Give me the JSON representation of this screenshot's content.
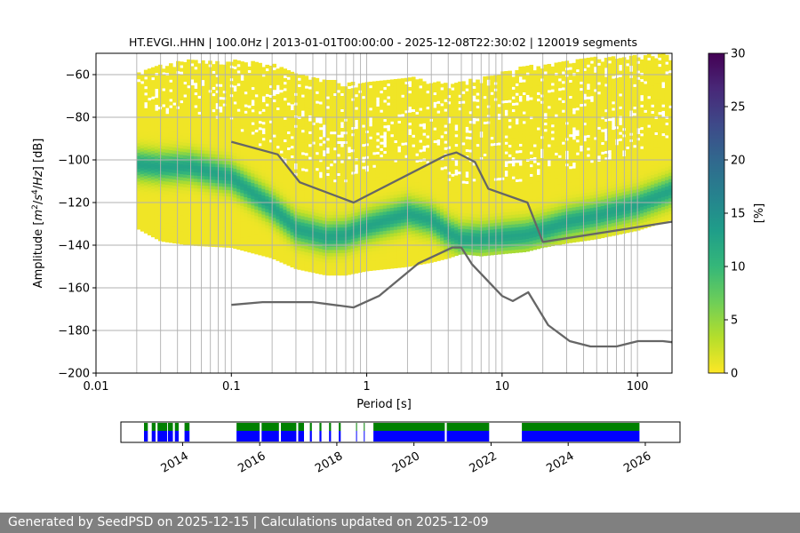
{
  "chart_data": [
    {
      "type": "heatmap",
      "title": "HT.EVGI..HHN | 100.0Hz | 2013-01-01T00:00:00 - 2025-12-08T22:30:02 | 120019 segments",
      "xlabel": "Period [s]",
      "ylabel_parts": [
        "Amplitude [",
        "m",
        "2",
        "/",
        "s",
        "4",
        "/",
        "Hz",
        "] [dB]"
      ],
      "xscale": "log",
      "xlim": [
        0.01,
        180
      ],
      "ylim": [
        -200,
        -50
      ],
      "x_ticks": [
        0.01,
        0.1,
        1,
        10,
        100
      ],
      "x_tick_labels": [
        "0.01",
        "0.1",
        "1",
        "10",
        "100"
      ],
      "y_ticks": [
        -200,
        -180,
        -160,
        -140,
        -120,
        -100,
        -80,
        -60
      ],
      "y_tick_labels": [
        "−200",
        "−180",
        "−160",
        "−140",
        "−120",
        "−100",
        "−80",
        "−60"
      ],
      "grid": true,
      "period_grid": [
        0.02,
        0.03,
        0.04,
        0.05,
        0.06,
        0.07,
        0.08,
        0.09,
        0.1,
        0.2,
        0.3,
        0.4,
        0.5,
        0.6,
        0.7,
        0.8,
        0.9,
        1,
        2,
        3,
        4,
        5,
        6,
        7,
        8,
        9,
        10,
        20,
        30,
        40,
        50,
        60,
        70,
        80,
        90,
        100
      ],
      "psd_envelope": {
        "period": [
          0.02,
          0.03,
          0.05,
          0.1,
          0.2,
          0.3,
          0.5,
          0.7,
          1,
          2,
          3,
          4,
          5,
          7,
          10,
          15,
          20,
          30,
          50,
          100,
          180
        ],
        "upper_db": [
          -60,
          -56,
          -54,
          -54,
          -56,
          -60,
          -63,
          -65,
          -64,
          -62,
          -64,
          -65,
          -64,
          -62,
          -60,
          -57,
          -56,
          -54,
          -53,
          -52,
          -51
        ],
        "lower_db": [
          -132,
          -138,
          -140,
          -141,
          -146,
          -151,
          -154,
          -154,
          -152,
          -150,
          -148,
          -146,
          -144,
          -145,
          -144,
          -143,
          -141,
          -139,
          -137,
          -133,
          -128
        ],
        "mode_db": [
          -102,
          -103,
          -103,
          -108,
          -122,
          -132,
          -136,
          -135,
          -131,
          -125,
          -128,
          -134,
          -137,
          -137,
          -136,
          -135,
          -133,
          -129,
          -126,
          -121,
          -114
        ]
      },
      "nlnm": {
        "period": [
          0.1,
          0.17,
          0.4,
          0.8,
          1.24,
          2.4,
          4.3,
          5.0,
          6.0,
          10.0,
          12.0,
          15.6,
          21.9,
          31.6,
          45.0,
          70.0,
          101.0,
          154.0,
          180.0
        ],
        "db": [
          -168.0,
          -166.7,
          -166.7,
          -169.2,
          -163.7,
          -148.6,
          -141.1,
          -141.1,
          -149.0,
          -163.8,
          -166.2,
          -162.1,
          -177.5,
          -185.0,
          -187.5,
          -187.5,
          -185.0,
          -185.0,
          -185.5
        ]
      },
      "nhnm": {
        "period": [
          0.1,
          0.22,
          0.32,
          0.8,
          3.8,
          4.6,
          6.3,
          7.9,
          15.4,
          20.0,
          180.0
        ],
        "db": [
          -91.5,
          -97.4,
          -110.5,
          -120.0,
          -98.0,
          -96.5,
          -101.0,
          -113.5,
          -120.0,
          -138.5,
          -129.0
        ]
      },
      "colorbar": {
        "label": "[%]",
        "min": 0,
        "max": 30,
        "ticks": [
          0,
          5,
          10,
          15,
          20,
          25,
          30
        ],
        "tick_labels": [
          "0",
          "5",
          "10",
          "15",
          "20",
          "25",
          "30"
        ],
        "colormap": [
          "#fde725",
          "#b5de2b",
          "#6ece58",
          "#35b779",
          "#1f9e89",
          "#26828e",
          "#31688e",
          "#3e4989",
          "#482878",
          "#440154"
        ]
      },
      "colors": {
        "model_line": "#666666",
        "grid": "#b0b0b0"
      }
    },
    {
      "type": "timeline",
      "year_ticks": [
        2014,
        2016,
        2018,
        2020,
        2022,
        2024,
        2026
      ],
      "year_tick_labels": [
        "2014",
        "2016",
        "2018",
        "2020",
        "2022",
        "2024",
        "2026"
      ],
      "xlim": [
        2012.4,
        2026.9
      ],
      "coverage_periods": [
        [
          2013.0,
          2013.1
        ],
        [
          2013.2,
          2013.3
        ],
        [
          2013.35,
          2013.6
        ],
        [
          2013.62,
          2013.75
        ],
        [
          2013.8,
          2013.9
        ],
        [
          2014.05,
          2014.18
        ],
        [
          2015.4,
          2016.0
        ],
        [
          2016.05,
          2016.5
        ],
        [
          2016.55,
          2016.95
        ],
        [
          2017.0,
          2017.15
        ],
        [
          2017.3,
          2017.35
        ],
        [
          2017.55,
          2017.6
        ],
        [
          2017.8,
          2017.85
        ],
        [
          2018.05,
          2018.1
        ],
        [
          2018.5,
          2018.52
        ],
        [
          2018.7,
          2018.72
        ],
        [
          2018.95,
          2020.8
        ],
        [
          2020.85,
          2021.95
        ],
        [
          2022.8,
          2025.85
        ]
      ],
      "colors": {
        "upper": "#008000",
        "lower": "#0000ff"
      }
    }
  ],
  "footer": {
    "text": "Generated by SeedPSD on 2025-12-15 | Calculations updated on 2025-12-09"
  }
}
